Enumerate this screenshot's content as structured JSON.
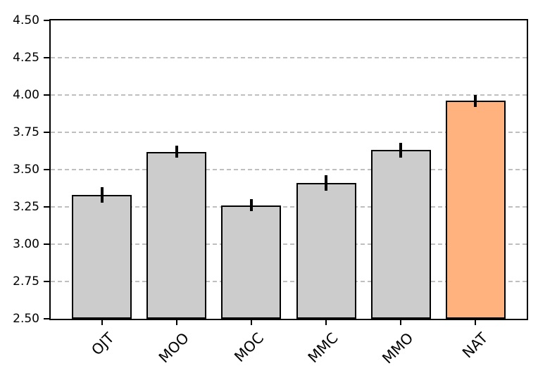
{
  "figure": {
    "background": "#ffffff",
    "title": ""
  },
  "chart_data": {
    "type": "bar",
    "title": "",
    "xlabel": "",
    "ylabel": "",
    "categories": [
      "OJT",
      "MOO",
      "MOC",
      "MMC",
      "MMO",
      "NAT"
    ],
    "values": [
      3.33,
      3.62,
      3.26,
      3.41,
      3.63,
      3.96
    ],
    "errors": [
      0.05,
      0.04,
      0.04,
      0.05,
      0.05,
      0.04
    ],
    "bar_colors": [
      "#cccccc",
      "#cccccc",
      "#cccccc",
      "#cccccc",
      "#cccccc",
      "#ffb27e"
    ],
    "bar_edge_color": "#000000",
    "error_bar_color": "#000000",
    "highlight_category": "NAT",
    "highlight_color": "#ffb27e",
    "default_bar_color": "#cccccc",
    "ylim": [
      2.5,
      4.5
    ],
    "yticks": [
      2.5,
      2.75,
      3.0,
      3.25,
      3.5,
      3.75,
      4.0,
      4.25,
      4.5
    ],
    "ytick_labels": [
      "2.50",
      "2.75",
      "3.00",
      "3.25",
      "3.50",
      "3.75",
      "4.00",
      "4.25",
      "4.50"
    ],
    "grid": "horizontal dashed",
    "gridline_color": "#bfbfbf",
    "legend": null,
    "x_tick_rotation_deg": 45,
    "bar_width": 0.8,
    "x_margin": 0.685
  }
}
